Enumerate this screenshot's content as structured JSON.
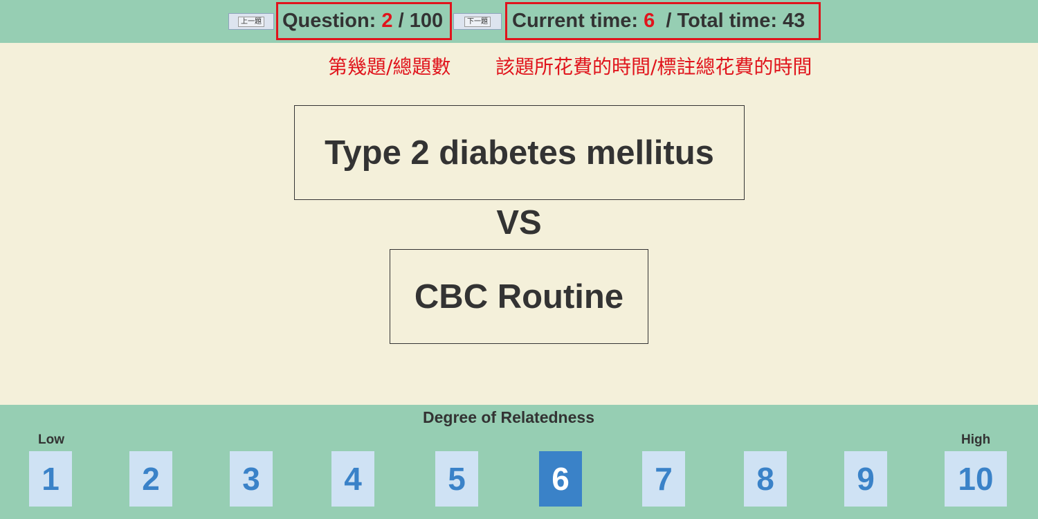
{
  "header": {
    "prev_label": "上一題",
    "next_label": "下一題",
    "question": {
      "label": "Question:",
      "current": "2",
      "separator": "/",
      "total": "100"
    },
    "time": {
      "current_label": "Current time:",
      "current_value": "6",
      "total_label": "/ Total time:",
      "total_value": "43"
    }
  },
  "annotations": {
    "question_note": "第幾題/總題數",
    "time_note": "該題所花費的時間/標註總花費的時間"
  },
  "terms": {
    "term1": "Type 2 diabetes mellitus",
    "vs": "VS",
    "term2": "CBC Routine"
  },
  "scale": {
    "title": "Degree of Relatedness",
    "low_label": "Low",
    "high_label": "High",
    "options": [
      "1",
      "2",
      "3",
      "4",
      "5",
      "6",
      "7",
      "8",
      "9",
      "10"
    ],
    "selected": "6"
  },
  "colors": {
    "bar_green": "#96ceb3",
    "content_bg": "#f4f0da",
    "highlight_red": "#e0141c",
    "scale_blue": "#3a82c8",
    "scale_light": "#cfe2f4"
  }
}
